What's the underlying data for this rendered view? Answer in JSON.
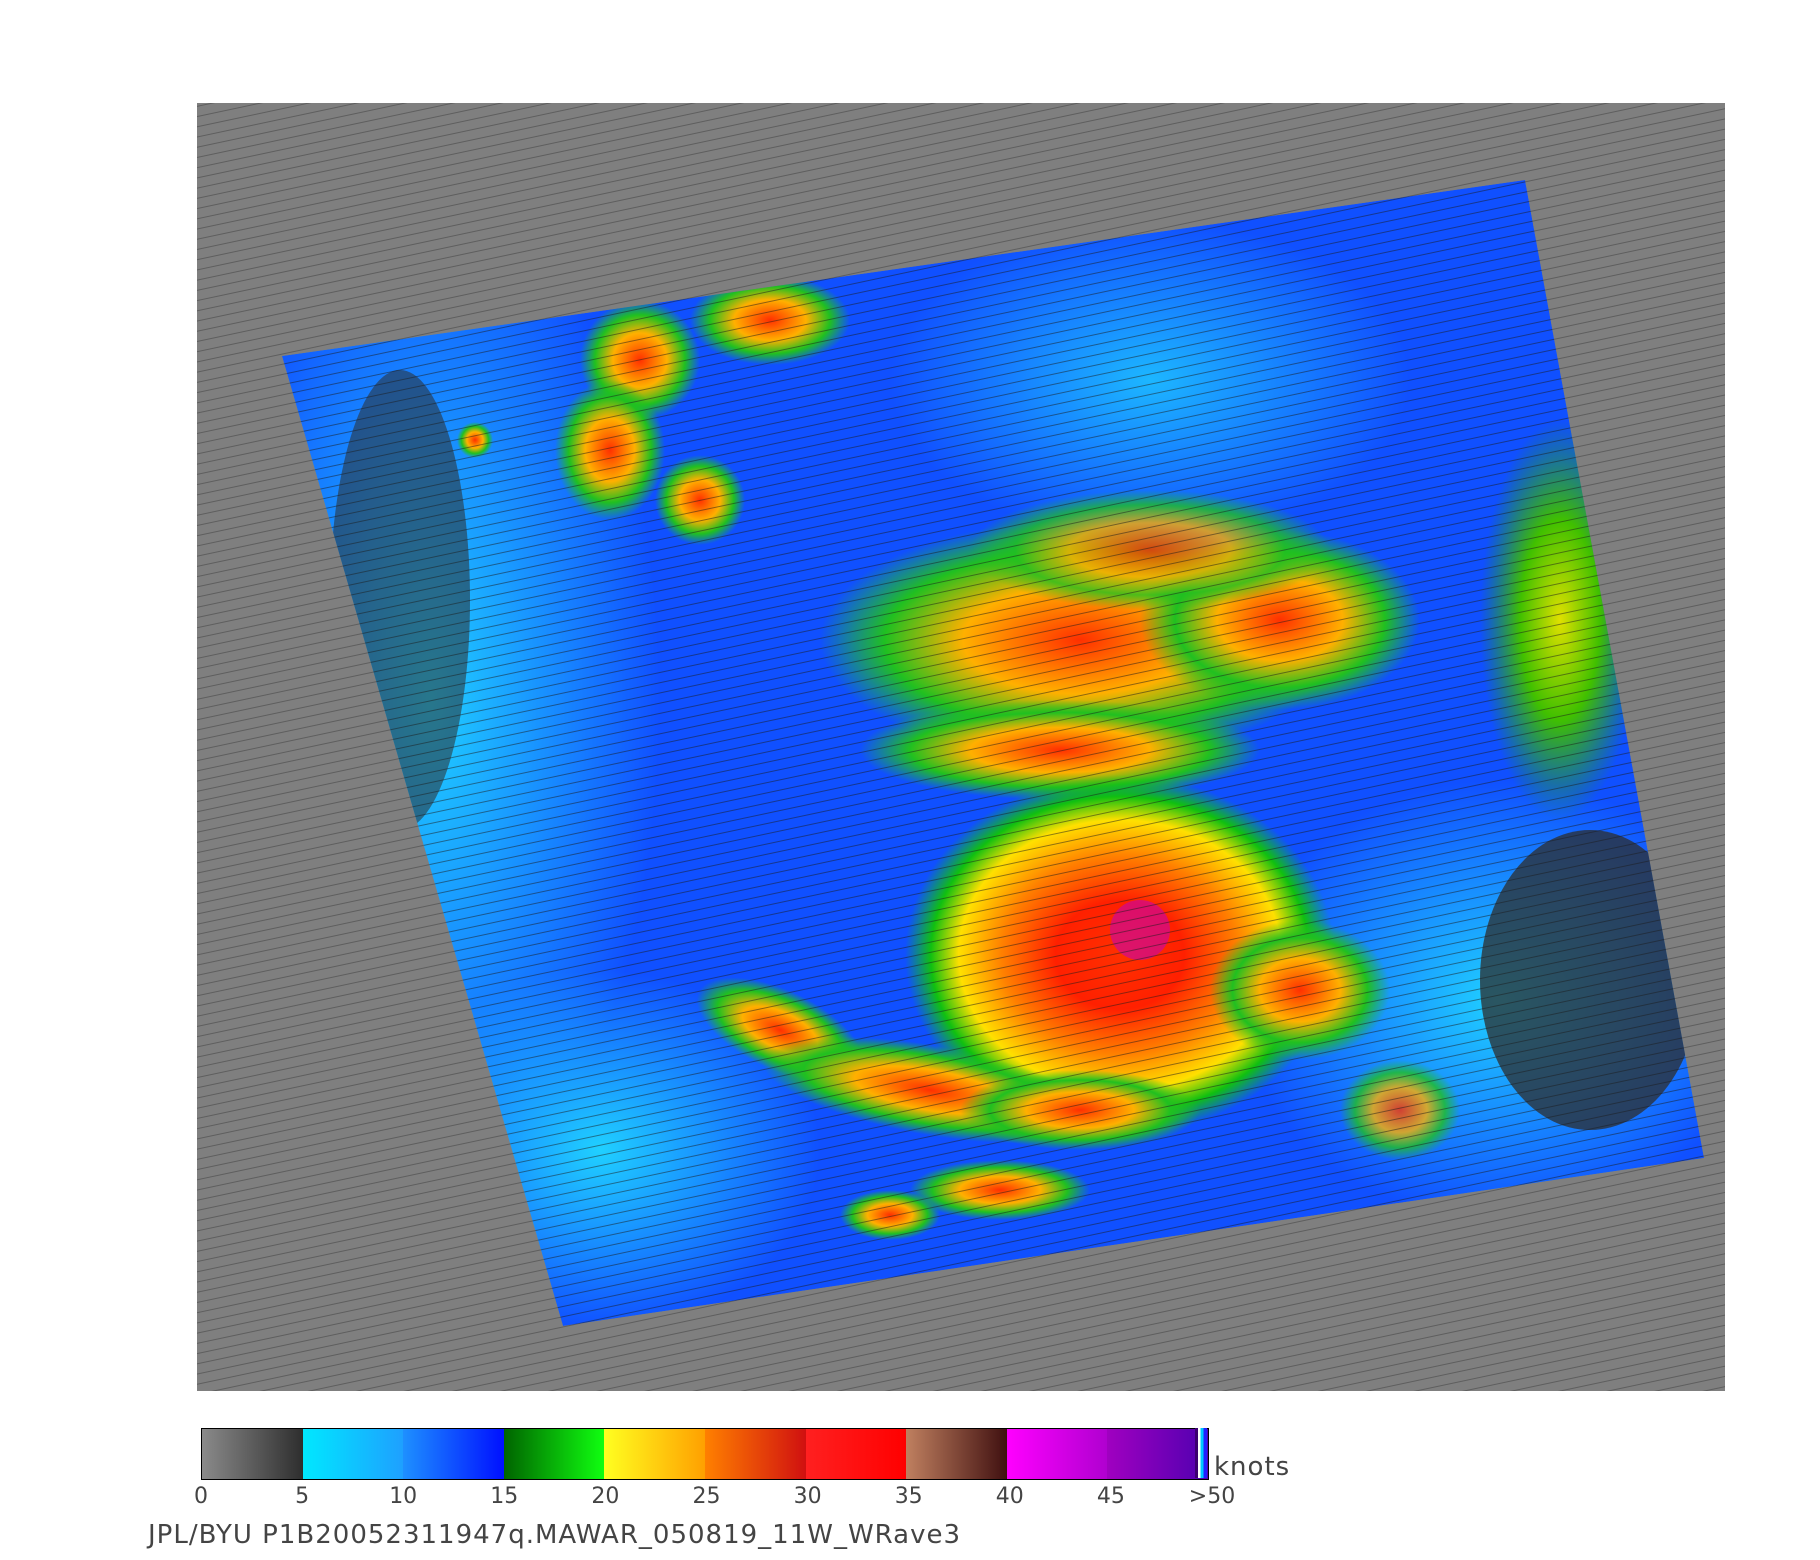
{
  "colorbar": {
    "units": "knots",
    "tick_labels": [
      "0",
      "5",
      "10",
      "15",
      "20",
      "25",
      "30",
      "35",
      "40",
      "45",
      ">50"
    ],
    "segments": [
      {
        "range": "0-5",
        "from": "#8a8a8a",
        "to": "#2e2e2e"
      },
      {
        "range": "5-10",
        "from": "#00e8ff",
        "to": "#1ea0ff"
      },
      {
        "range": "10-15",
        "from": "#1e90ff",
        "to": "#0010ff"
      },
      {
        "range": "15-20",
        "from": "#006400",
        "to": "#10ff10"
      },
      {
        "range": "20-25",
        "from": "#ffff20",
        "to": "#ffa000"
      },
      {
        "range": "25-30",
        "from": "#ff8000",
        "to": "#d01010"
      },
      {
        "range": "30-35",
        "from": "#ff2020",
        "to": "#ff0000"
      },
      {
        "range": "35-40",
        "from": "#c08060",
        "to": "#401010"
      },
      {
        "range": "40-45",
        "from": "#ff00ff",
        "to": "#b000d0"
      },
      {
        "range": "45-50",
        "from": "#a000c0",
        "to": "#5000b0"
      }
    ]
  },
  "footer": {
    "credit": "JPL/BYU  P1B20052311947q.MAWAR_050819_11W_WRave3"
  },
  "colors": {
    "land_mask": "#7f7f7f",
    "background": "#ffffff"
  }
}
